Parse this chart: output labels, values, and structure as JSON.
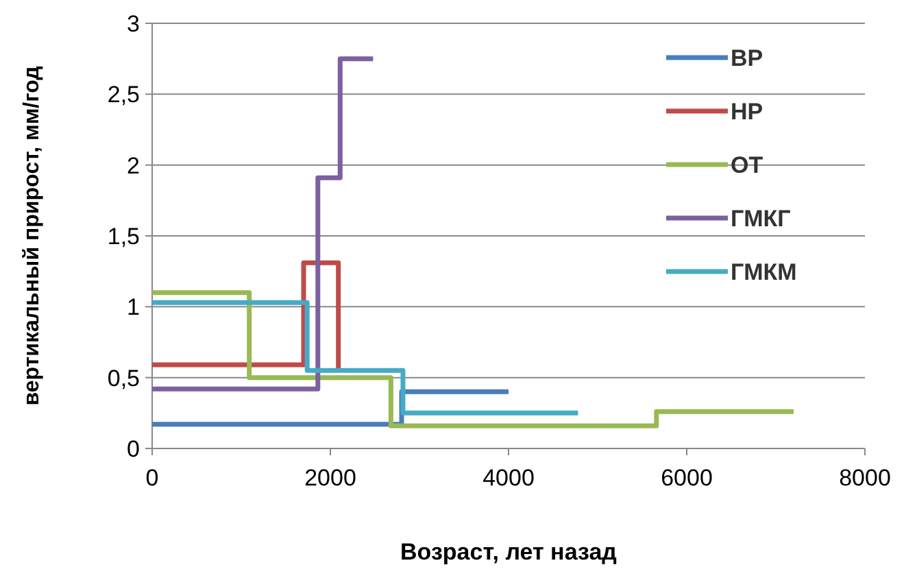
{
  "chart_data": {
    "type": "line",
    "xlabel": "Возраст, лет назад",
    "ylabel": "вертикальный прирост, мм/год",
    "xlim": [
      0,
      8000
    ],
    "xticks": [
      0,
      2000,
      4000,
      6000,
      8000
    ],
    "ylim": [
      0,
      3
    ],
    "yticks": [
      0,
      {
        "value": 0.5,
        "label": "0,5"
      },
      1,
      {
        "value": 1.5,
        "label": "1,5"
      },
      2,
      {
        "value": 2.5,
        "label": "2,5"
      },
      3
    ],
    "grid": "y",
    "legend": "top right",
    "marker": "none",
    "line_style": "solid",
    "series": [
      {
        "name": "ВР",
        "color": "#4a7ebb",
        "x": [
          0,
          2800,
          2800,
          4000
        ],
        "values": [
          0.17,
          0.17,
          0.4,
          0.4
        ]
      },
      {
        "name": "НР",
        "color": "#be4b48",
        "x": [
          0,
          1700,
          1700,
          2090,
          2090
        ],
        "values": [
          0.59,
          0.59,
          1.31,
          1.31,
          0.55
        ]
      },
      {
        "name": "ОТ",
        "color": "#98b954",
        "x": [
          0,
          1090,
          1090,
          2680,
          2680,
          5660,
          5660,
          7200
        ],
        "values": [
          1.1,
          1.1,
          0.5,
          0.5,
          0.16,
          0.16,
          0.26,
          0.26
        ]
      },
      {
        "name": "ГМКГ",
        "color": "#7d60a0",
        "x": [
          0,
          1860,
          1860,
          2110,
          2110,
          2480
        ],
        "values": [
          0.42,
          0.42,
          1.91,
          1.91,
          2.75,
          2.75
        ]
      },
      {
        "name": "ГМКМ",
        "color": "#46aac5",
        "x": [
          0,
          1740,
          1740,
          2815,
          2815,
          4780
        ],
        "values": [
          1.03,
          1.03,
          0.55,
          0.55,
          0.25,
          0.25
        ]
      }
    ]
  }
}
